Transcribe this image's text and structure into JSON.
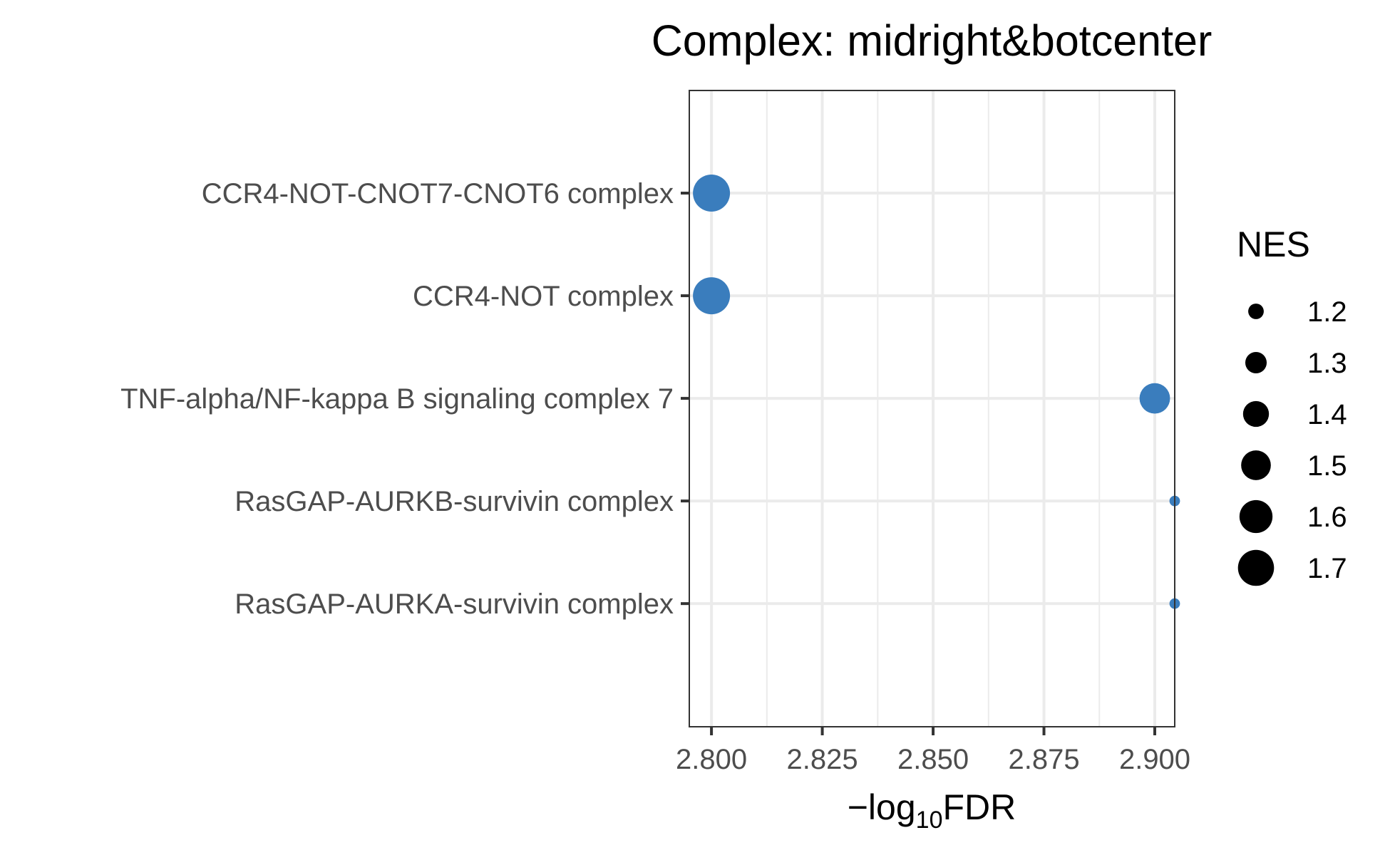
{
  "chart_data": {
    "type": "scatter",
    "title": "Complex: midright&botcenter",
    "xlabel": {
      "prefix": "−log",
      "subscript": "10",
      "suffix": "FDR"
    },
    "ylabel": "",
    "xlim": [
      2.795,
      2.9045
    ],
    "xticks": [
      "2.800",
      "2.825",
      "2.850",
      "2.875",
      "2.900"
    ],
    "categories": [
      "CCR4-NOT-CNOT7-CNOT6 complex",
      "CCR4-NOT complex",
      "TNF-alpha/NF-kappa B signaling complex 7",
      "RasGAP-AURKB-survivin complex",
      "RasGAP-AURKA-survivin complex"
    ],
    "points": [
      {
        "category": "CCR4-NOT-CNOT7-CNOT6 complex",
        "x": 2.8,
        "nes": 1.72
      },
      {
        "category": "CCR4-NOT complex",
        "x": 2.8,
        "nes": 1.72
      },
      {
        "category": "TNF-alpha/NF-kappa B signaling complex 7",
        "x": 2.9,
        "nes": 1.52
      },
      {
        "category": "RasGAP-AURKB-survivin complex",
        "x": 2.9045,
        "nes": 1.15
      },
      {
        "category": "RasGAP-AURKA-survivin complex",
        "x": 2.9045,
        "nes": 1.15
      }
    ],
    "point_color": "#3a7dbd",
    "grid": true,
    "legend": {
      "title": "NES",
      "placement": "right",
      "entries": [
        "1.2",
        "1.3",
        "1.4",
        "1.5",
        "1.6",
        "1.7"
      ],
      "values": [
        1.2,
        1.3,
        1.4,
        1.5,
        1.6,
        1.7
      ]
    }
  }
}
